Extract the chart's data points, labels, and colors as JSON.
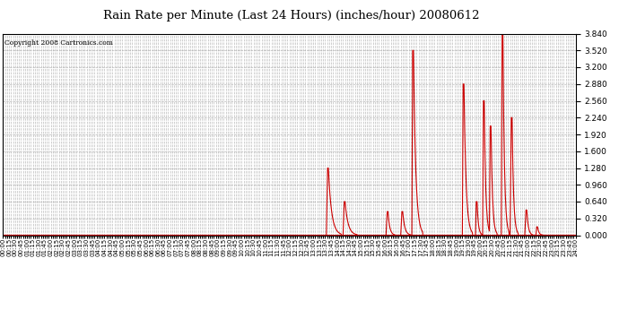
{
  "title": "Rain Rate per Minute (Last 24 Hours) (inches/hour) 20080612",
  "copyright": "Copyright 2008 Cartronics.com",
  "background_color": "#ffffff",
  "plot_bg_color": "#ffffff",
  "line_color": "#cc0000",
  "grid_color": "#aaaaaa",
  "ylim": [
    0.0,
    3.84
  ],
  "yticks": [
    0.0,
    0.32,
    0.64,
    0.96,
    1.28,
    1.6,
    1.92,
    2.24,
    2.56,
    2.88,
    3.2,
    3.52,
    3.84
  ],
  "total_minutes": 1440,
  "spikes": [
    [
      813,
      816,
      1.28,
      818,
      850
    ],
    [
      855,
      858,
      0.64,
      860,
      890
    ],
    [
      963,
      966,
      0.45,
      968,
      985
    ],
    [
      1000,
      1003,
      0.45,
      1005,
      1025
    ],
    [
      1028,
      1030,
      3.52,
      1032,
      1055
    ],
    [
      1155,
      1157,
      2.88,
      1159,
      1180
    ],
    [
      1188,
      1190,
      0.64,
      1192,
      1205
    ],
    [
      1206,
      1208,
      2.56,
      1210,
      1225
    ],
    [
      1223,
      1225,
      2.08,
      1227,
      1242
    ],
    [
      1253,
      1255,
      3.84,
      1257,
      1272
    ],
    [
      1275,
      1278,
      2.24,
      1280,
      1295
    ],
    [
      1312,
      1315,
      0.48,
      1317,
      1332
    ],
    [
      1340,
      1342,
      0.16,
      1344,
      1358
    ]
  ],
  "x_tick_every_n_minutes": 5,
  "x_label_every_n_ticks": 3
}
